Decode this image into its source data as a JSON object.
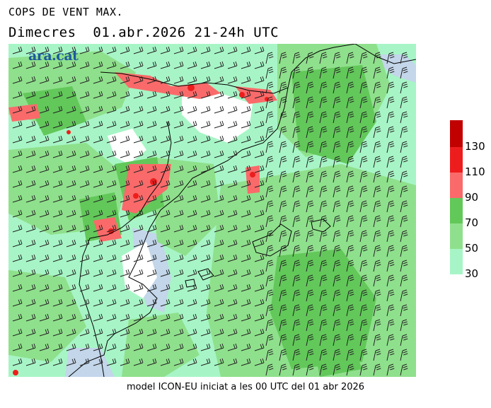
{
  "header": {
    "title": "COPS DE VENT MAX.",
    "subtitle": "Dimecres  01.abr.2026 21-24h UTC"
  },
  "footer": {
    "text": "model ICON-EU iniciat a les 00 UTC del 01 abr 2026"
  },
  "logo": {
    "text": "ara.cat"
  },
  "legend": {
    "labels": [
      "30",
      "50",
      "70",
      "90",
      "110",
      "130"
    ],
    "bands": [
      {
        "from": "30",
        "to": "50",
        "color": "#a7f5c6"
      },
      {
        "from": "50",
        "to": "70",
        "color": "#8fe08c"
      },
      {
        "from": "70",
        "to": "90",
        "color": "#62c85a"
      },
      {
        "from": "90",
        "to": "110",
        "color": "#fa6a6a"
      },
      {
        "from": "110",
        "to": "130",
        "color": "#ee1d1d"
      },
      {
        "from": "130",
        "to": "",
        "color": "#c10000"
      }
    ]
  },
  "map_colors": {
    "land_background": "#ffffff",
    "sea_calm": "#c3d6ea",
    "border_line": "#000000",
    "barb": "#222222"
  }
}
